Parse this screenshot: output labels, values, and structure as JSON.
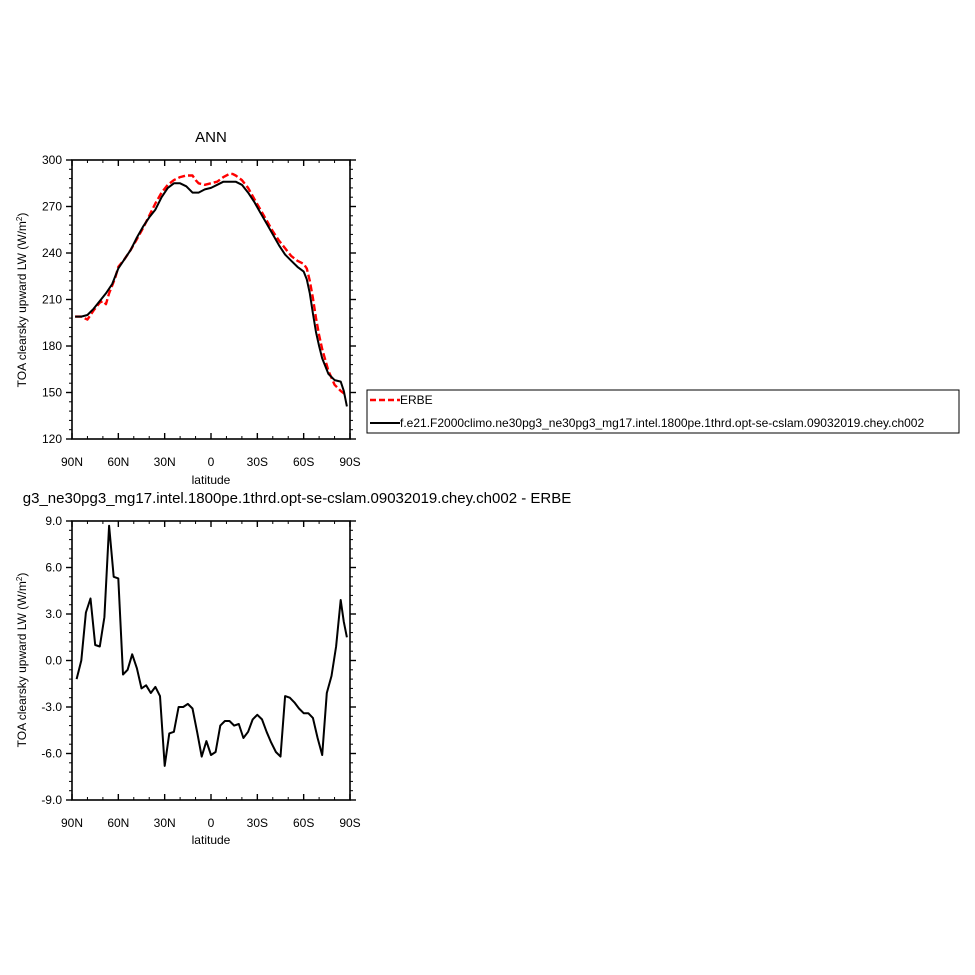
{
  "chart_data": [
    {
      "type": "line",
      "title": "ANN",
      "xlabel": "latitude",
      "ylabel": "TOA clearsky upward LW (W/m",
      "ylabel_sup": "2",
      "ylabel_end": ")",
      "xlim": [
        90,
        -90
      ],
      "ylim": [
        120,
        300
      ],
      "x_ticks": [
        90,
        60,
        30,
        0,
        -30,
        -60,
        -90
      ],
      "x_tick_labels": [
        "90N",
        "60N",
        "30N",
        "0",
        "30S",
        "60S",
        "90S"
      ],
      "y_ticks": [
        120,
        150,
        180,
        210,
        240,
        270,
        300
      ],
      "y_tick_labels": [
        "120",
        "150",
        "180",
        "210",
        "240",
        "270",
        "300"
      ],
      "legend": "right",
      "series": [
        {
          "name": "ERBE",
          "color": "#ff0000",
          "dash": "dashed",
          "x": [
            88,
            84,
            80,
            76,
            72,
            70,
            68,
            66,
            64,
            62,
            60,
            56,
            52,
            48,
            44,
            40,
            36,
            32,
            28,
            24,
            20,
            16,
            12,
            10,
            8,
            4,
            0,
            -4,
            -8,
            -12,
            -14,
            -16,
            -20,
            -24,
            -28,
            -32,
            -36,
            -40,
            -44,
            -48,
            -52,
            -56,
            -60,
            -62,
            -64,
            -66,
            -68,
            -70,
            -72,
            -76,
            -80,
            -84,
            -88
          ],
          "y": [
            199,
            199,
            197,
            203,
            208,
            209,
            207,
            214,
            219,
            224,
            231,
            236,
            242,
            249,
            256,
            264,
            272,
            279,
            284,
            287,
            289,
            290,
            290,
            287,
            285,
            284,
            285,
            286,
            289,
            291,
            291,
            290,
            287,
            282,
            275,
            268,
            261,
            254,
            248,
            243,
            238,
            235,
            233,
            230,
            222,
            211,
            198,
            187,
            178,
            164,
            155,
            151,
            148
          ]
        },
        {
          "name": "f.e21.F2000climo.ne30pg3_ne30pg3_mg17.intel.1800pe.1thrd.opt-se-cslam.09032019.chey.ch002",
          "color": "#000000",
          "dash": "solid",
          "x": [
            88,
            84,
            80,
            76,
            72,
            68,
            64,
            60,
            56,
            52,
            48,
            44,
            40,
            36,
            32,
            28,
            24,
            20,
            16,
            12,
            8,
            4,
            0,
            -4,
            -8,
            -12,
            -16,
            -20,
            -24,
            -28,
            -32,
            -36,
            -40,
            -44,
            -48,
            -52,
            -56,
            -60,
            -62,
            -64,
            -66,
            -68,
            -70,
            -72,
            -76,
            -80,
            -84,
            -86,
            -88
          ],
          "y": [
            199,
            199,
            200,
            204,
            209,
            214,
            220,
            230,
            236,
            242,
            250,
            257,
            263,
            268,
            276,
            282,
            285,
            285,
            283,
            279,
            279,
            281,
            282,
            284,
            286,
            286,
            286,
            284,
            279,
            273,
            266,
            259,
            252,
            245,
            239,
            235,
            231,
            228,
            223,
            214,
            201,
            189,
            180,
            172,
            162,
            158,
            157,
            151,
            141
          ]
        }
      ]
    },
    {
      "type": "line",
      "title": "g3_ne30pg3_mg17.intel.1800pe.1thrd.opt-se-cslam.09032019.chey.ch002 - ERBE",
      "xlabel": "latitude",
      "ylabel": "TOA clearsky upward LW (W/m",
      "ylabel_sup": "2",
      "ylabel_end": ")",
      "xlim": [
        90,
        -90
      ],
      "ylim": [
        -9,
        9
      ],
      "x_ticks": [
        90,
        60,
        30,
        0,
        -30,
        -60,
        -90
      ],
      "x_tick_labels": [
        "90N",
        "60N",
        "30N",
        "0",
        "30S",
        "60S",
        "90S"
      ],
      "y_ticks": [
        -9,
        -6,
        -3,
        0,
        3,
        6,
        9
      ],
      "y_tick_labels": [
        "-9.0",
        "-6.0",
        "-3.0",
        "0.0",
        "3.0",
        "6.0",
        "9.0"
      ],
      "series": [
        {
          "color": "#000000",
          "dash": "solid",
          "x": [
            87,
            84,
            81,
            78,
            75,
            72,
            69,
            66,
            63,
            60,
            57,
            54,
            51,
            48,
            45,
            42,
            39,
            36,
            33,
            30,
            27,
            24,
            21,
            18,
            15,
            12,
            9,
            6,
            3,
            0,
            -3,
            -6,
            -9,
            -12,
            -15,
            -18,
            -21,
            -24,
            -27,
            -30,
            -33,
            -36,
            -39,
            -42,
            -45,
            -48,
            -51,
            -54,
            -57,
            -60,
            -63,
            -66,
            -69,
            -72,
            -75,
            -78,
            -81,
            -84,
            -86,
            -88
          ],
          "y": [
            -1.2,
            0,
            3.1,
            4,
            1,
            0.9,
            2.8,
            8.7,
            5.4,
            5.3,
            -0.9,
            -0.6,
            0.4,
            -0.5,
            -1.8,
            -1.6,
            -2.1,
            -1.7,
            -2.3,
            -6.8,
            -4.7,
            -4.6,
            -3,
            -3,
            -2.8,
            -3.1,
            -4.6,
            -6.2,
            -5.2,
            -6.1,
            -5.9,
            -4.2,
            -3.9,
            -3.9,
            -4.2,
            -4.1,
            -5,
            -4.6,
            -3.8,
            -3.5,
            -3.8,
            -4.6,
            -5.3,
            -5.9,
            -6.2,
            -2.3,
            -2.4,
            -2.7,
            -3.1,
            -3.4,
            -3.4,
            -3.7,
            -5,
            -6.1,
            -2.1,
            -1,
            0.9,
            3.9,
            2.5,
            1.5
          ]
        }
      ]
    }
  ]
}
